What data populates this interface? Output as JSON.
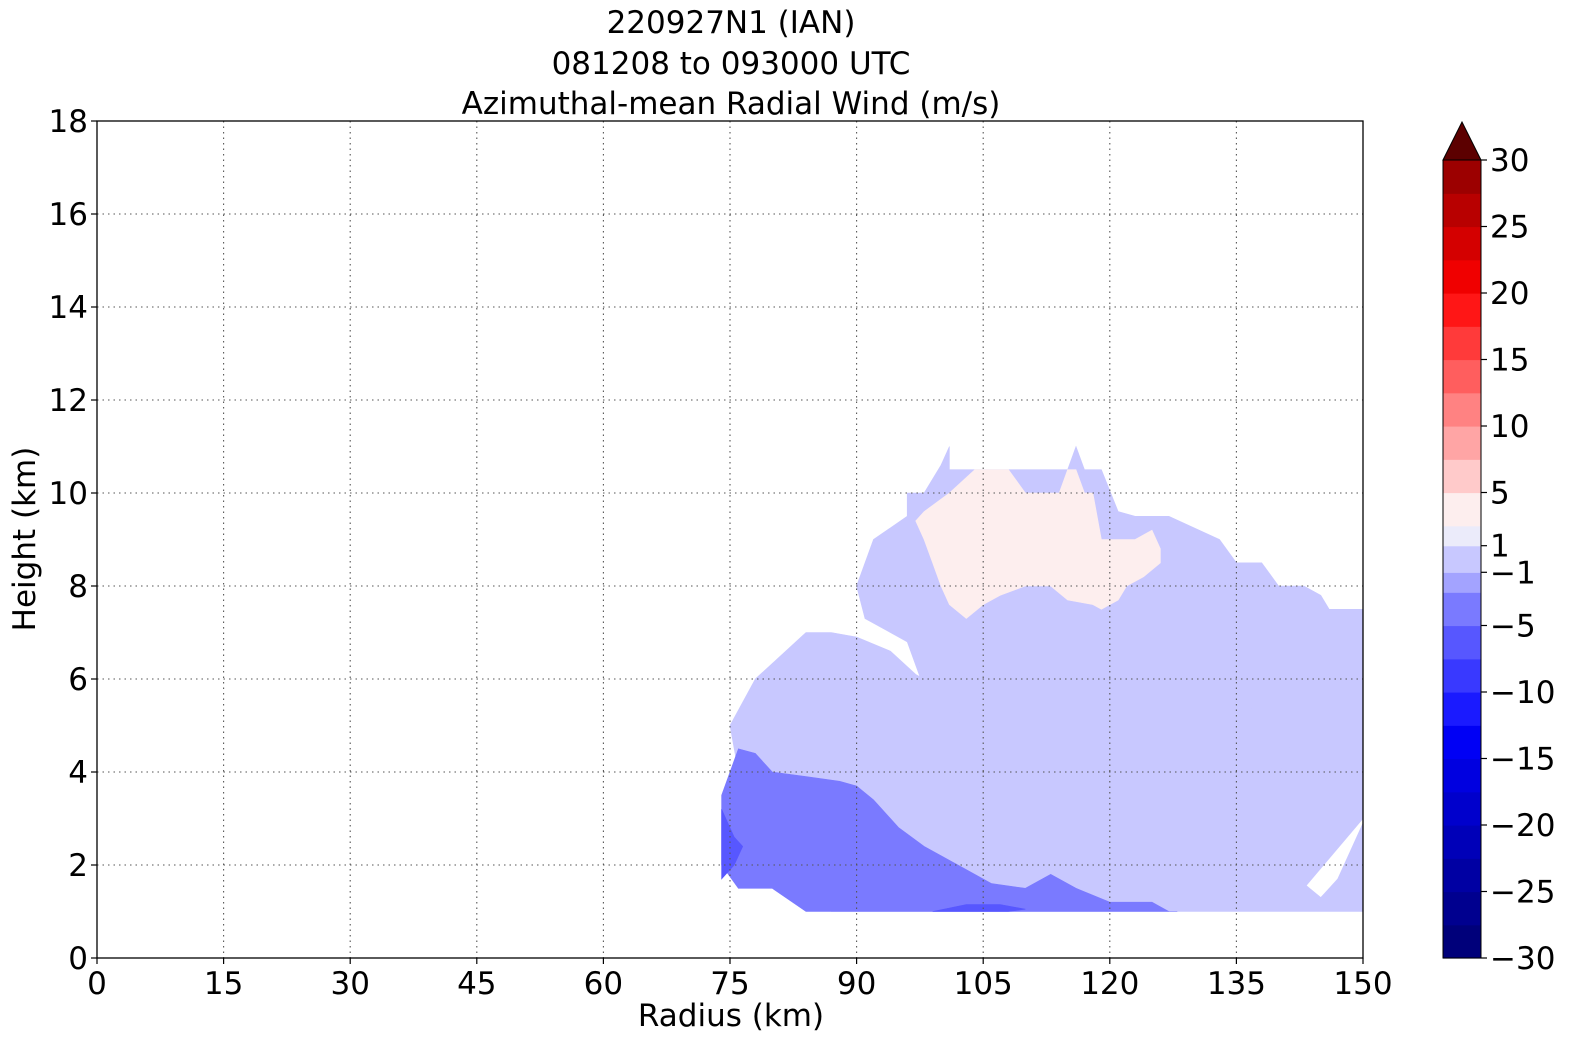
{
  "chart_data": {
    "type": "heatmap",
    "title_lines": [
      "220927N1 (IAN)",
      "081208 to 093000 UTC",
      "Azimuthal-mean Radial Wind (m/s)"
    ],
    "xlabel": "Radius (km)",
    "ylabel": "Height (km)",
    "xlim": [
      0,
      150
    ],
    "ylim": [
      0,
      18
    ],
    "x_ticks": [
      0,
      15,
      30,
      45,
      60,
      75,
      90,
      105,
      120,
      135,
      150
    ],
    "y_ticks": [
      0,
      2,
      4,
      6,
      8,
      10,
      12,
      14,
      16,
      18
    ],
    "grid": "dotted",
    "colorbar": {
      "min": -30,
      "max": 30,
      "extend": "max",
      "tick_values": [
        30,
        25,
        20,
        15,
        10,
        5,
        1,
        -1,
        -5,
        -10,
        -15,
        -20,
        -25,
        -30
      ],
      "tick_labels": [
        "30",
        "25",
        "20",
        "15",
        "10",
        "5",
        "1",
        "−1",
        "−5",
        "−10",
        "−15",
        "−20",
        "−25",
        "−30"
      ],
      "levels": [
        -30,
        -27.5,
        -25,
        -22.5,
        -20,
        -17.5,
        -15,
        -12.5,
        -10,
        -7.5,
        -5,
        -2.5,
        -1,
        1,
        2.5,
        5,
        7.5,
        10,
        12.5,
        15,
        17.5,
        20,
        22.5,
        25,
        27.5,
        30
      ],
      "colors": [
        "#00007a",
        "#00008f",
        "#0000a3",
        "#0000b8",
        "#0000cc",
        "#0000e0",
        "#0000f5",
        "#1a1aff",
        "#3939ff",
        "#5757ff",
        "#7a7aff",
        "#a3a3ff",
        "#c8c8ff",
        "#ebebfa",
        "#fdeeee",
        "#ffcaca",
        "#ffa5a5",
        "#ff8282",
        "#ff5e5e",
        "#ff3a3a",
        "#ff1616",
        "#f00000",
        "#d40000",
        "#b80000",
        "#9c0000",
        "#7a0000",
        "#5c0000"
      ]
    },
    "regions": [
      {
        "value": 0.5,
        "label": "0 to 1 m/s (light pink)",
        "x": [
          96,
          98,
          100,
          101,
          101,
          103,
          108,
          112,
          115,
          116,
          117,
          118,
          119,
          121,
          123,
          127,
          133,
          135,
          138,
          140,
          143,
          145,
          146,
          150,
          150,
          143,
          139,
          137,
          135,
          128,
          123,
          116,
          109,
          104,
          101,
          98,
          96,
          91,
          90,
          91,
          92,
          96
        ],
        "y": [
          10,
          10,
          10.6,
          11,
          10.5,
          10.5,
          10.5,
          10.5,
          10.5,
          11,
          10.5,
          10.5,
          10.5,
          9.6,
          9.5,
          9.5,
          9,
          8.5,
          8.5,
          8,
          8,
          7.8,
          7.5,
          7.5,
          3,
          1.5,
          1.5,
          2.4,
          3.5,
          4.8,
          5.5,
          5.2,
          4.8,
          4.8,
          5.1,
          5.8,
          6.8,
          7.3,
          8,
          8.5,
          9,
          9.5
        ]
      },
      {
        "value": 3.0,
        "label": "1 to 5 m/s (pink)",
        "x": [
          98,
          101,
          104,
          108,
          110,
          112,
          114,
          115,
          116,
          117,
          118,
          119,
          120,
          121,
          123,
          125,
          126,
          126,
          124,
          122,
          121,
          119,
          118,
          115,
          113,
          110,
          107,
          105,
          103,
          101,
          100,
          99,
          98,
          97
        ],
        "y": [
          9.6,
          10,
          10.5,
          10.5,
          10,
          10,
          10,
          10.5,
          10.5,
          10,
          10,
          9,
          9,
          9,
          9,
          9.2,
          8.8,
          8.5,
          8.2,
          8,
          7.7,
          7.5,
          7.6,
          7.7,
          8,
          8,
          7.8,
          7.6,
          7.3,
          7.6,
          8,
          8.5,
          9,
          9.4
        ]
      },
      {
        "value": -0.5,
        "label": "-1 to 0 m/s (pale blue)",
        "x": [
          78,
          81,
          84,
          87,
          90,
          94,
          97,
          100,
          103,
          107,
          112,
          118,
          123,
          130,
          136,
          140,
          142,
          141,
          140,
          138,
          137,
          139,
          141,
          143,
          145,
          147,
          150,
          150,
          145,
          140,
          130,
          124,
          115,
          105,
          95,
          87,
          80,
          76,
          75
        ],
        "y": [
          6,
          6.5,
          7,
          7,
          6.9,
          6.6,
          6.1,
          5.8,
          5.1,
          4.9,
          5.2,
          5.4,
          5.7,
          5.6,
          5.4,
          5.2,
          4.8,
          4.4,
          3.9,
          3.5,
          2.8,
          2.4,
          2,
          1.6,
          1.3,
          1.7,
          2.9,
          1,
          1,
          1,
          1,
          1,
          1,
          1,
          1,
          1,
          2,
          4,
          5
        ]
      },
      {
        "value": -3.0,
        "label": "-5 to -1 m/s (light blue)",
        "x": [
          74,
          76,
          78,
          80,
          84,
          88,
          90,
          92,
          95,
          98,
          102,
          106,
          110,
          113,
          116,
          120,
          125,
          127,
          128,
          124,
          118,
          110,
          104,
          98,
          93,
          88,
          84,
          80,
          76,
          74
        ],
        "y": [
          3.5,
          4.5,
          4.4,
          4,
          3.9,
          3.8,
          3.7,
          3.4,
          2.8,
          2.4,
          2,
          1.6,
          1.5,
          1.8,
          1.5,
          1.2,
          1.2,
          1,
          1,
          1,
          1,
          1,
          1,
          1,
          1,
          1,
          1,
          1.5,
          1.5,
          2
        ]
      },
      {
        "value": -6.0,
        "label": "-7.5 to -5 m/s (medium blue)",
        "x": [
          74,
          75.5,
          76.5,
          75.5,
          74
        ],
        "y": [
          3.2,
          2.6,
          2.4,
          2,
          1.7
        ]
      },
      {
        "value": -6.0,
        "label": "-7.5 to -5 m/s (medium blue)",
        "x": [
          99,
          103,
          107,
          110,
          108,
          103
        ],
        "y": [
          1,
          1.15,
          1.15,
          1.05,
          1,
          1
        ]
      }
    ]
  }
}
